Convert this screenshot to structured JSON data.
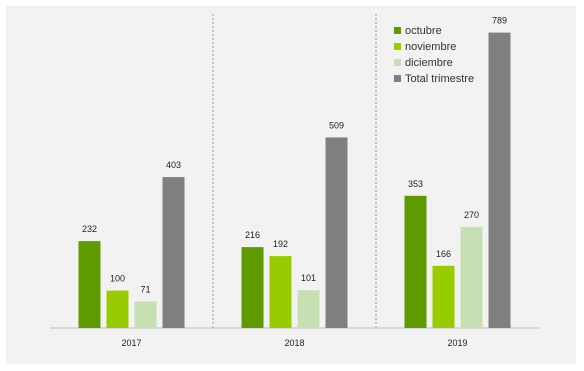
{
  "chart_data": {
    "type": "bar",
    "categories": [
      "2017",
      "2018",
      "2019"
    ],
    "series": [
      {
        "name": "octubre",
        "color": "#5e9a00",
        "values": [
          232,
          216,
          353
        ]
      },
      {
        "name": "noviembre",
        "color": "#99cc00",
        "values": [
          100,
          192,
          166
        ]
      },
      {
        "name": "diciembre",
        "color": "#c6e0b4",
        "values": [
          71,
          101,
          270
        ]
      },
      {
        "name": "Total trimestre",
        "color": "#7f7f7f",
        "values": [
          403,
          509,
          789
        ]
      }
    ],
    "ylim": [
      0,
      860
    ],
    "title": "",
    "xlabel": "",
    "ylabel": "",
    "grid": false,
    "legend_position": "top-right",
    "category_separators": true
  }
}
